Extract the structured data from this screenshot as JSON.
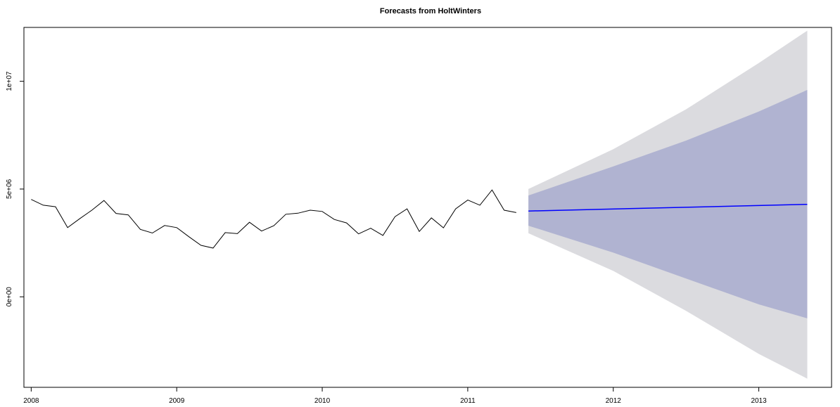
{
  "chart_data": {
    "type": "line",
    "title": "Forecasts from HoltWinters",
    "xlabel": "",
    "ylabel": "",
    "xlim": [
      2007.95,
      2013.5
    ],
    "ylim": [
      -4200000,
      12500000
    ],
    "grid": false,
    "x_ticks": [
      {
        "value": 2008,
        "label": "2008"
      },
      {
        "value": 2009,
        "label": "2009"
      },
      {
        "value": 2010,
        "label": "2010"
      },
      {
        "value": 2011,
        "label": "2011"
      },
      {
        "value": 2012,
        "label": "2012"
      },
      {
        "value": 2013,
        "label": "2013"
      }
    ],
    "y_ticks": [
      {
        "value": 0,
        "label": "0e+00"
      },
      {
        "value": 5000000,
        "label": "5e+06"
      },
      {
        "value": 10000000,
        "label": "1e+07"
      }
    ],
    "series": [
      {
        "role": "observed",
        "color": "#000000",
        "x": [
          2008.0,
          2008.083,
          2008.167,
          2008.25,
          2008.333,
          2008.417,
          2008.5,
          2008.583,
          2008.667,
          2008.75,
          2008.833,
          2008.917,
          2009.0,
          2009.083,
          2009.167,
          2009.25,
          2009.333,
          2009.417,
          2009.5,
          2009.583,
          2009.667,
          2009.75,
          2009.833,
          2009.917,
          2010.0,
          2010.083,
          2010.167,
          2010.25,
          2010.333,
          2010.417,
          2010.5,
          2010.583,
          2010.667,
          2010.75,
          2010.833,
          2010.917,
          2011.0,
          2011.083,
          2011.167,
          2011.25,
          2011.333
        ],
        "y": [
          4520000,
          4250000,
          4180000,
          3210000,
          3620000,
          4020000,
          4470000,
          3870000,
          3800000,
          3130000,
          2960000,
          3310000,
          3210000,
          2790000,
          2390000,
          2260000,
          2980000,
          2930000,
          3460000,
          3050000,
          3300000,
          3830000,
          3880000,
          4020000,
          3960000,
          3590000,
          3430000,
          2920000,
          3180000,
          2850000,
          3720000,
          4080000,
          3030000,
          3660000,
          3200000,
          4080000,
          4490000,
          4250000,
          4960000,
          4020000,
          3910000
        ]
      },
      {
        "role": "forecast",
        "color": "#0000ff",
        "x": [
          2011.417,
          2013.333
        ],
        "y": [
          3980000,
          4290000
        ]
      }
    ],
    "intervals": [
      {
        "level": "95%",
        "color": "#dbdbdf",
        "x": [
          2011.417,
          2012.0,
          2012.5,
          2013.0,
          2013.333
        ],
        "upper": [
          5000000,
          6850000,
          8700000,
          10850000,
          12350000
        ],
        "lower": [
          2950000,
          1200000,
          -650000,
          -2650000,
          -3800000
        ]
      },
      {
        "level": "80%",
        "color": "#b0b3d1",
        "x": [
          2011.417,
          2012.0,
          2012.5,
          2013.0,
          2013.333
        ],
        "upper": [
          4700000,
          6050000,
          7250000,
          8600000,
          9600000
        ],
        "lower": [
          3300000,
          2050000,
          850000,
          -350000,
          -1000000
        ]
      }
    ]
  }
}
